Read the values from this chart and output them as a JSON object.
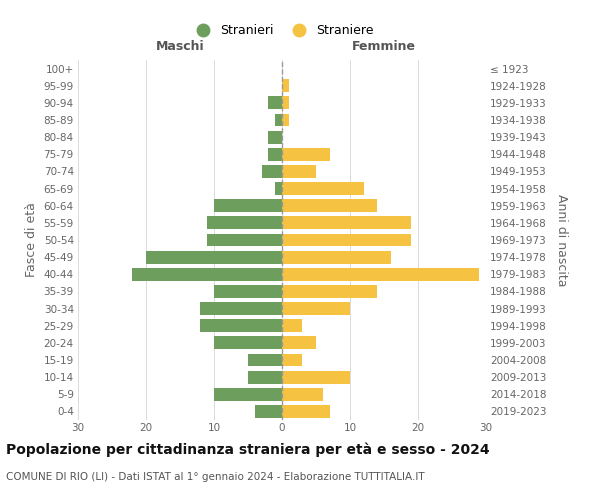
{
  "age_groups": [
    "0-4",
    "5-9",
    "10-14",
    "15-19",
    "20-24",
    "25-29",
    "30-34",
    "35-39",
    "40-44",
    "45-49",
    "50-54",
    "55-59",
    "60-64",
    "65-69",
    "70-74",
    "75-79",
    "80-84",
    "85-89",
    "90-94",
    "95-99",
    "100+"
  ],
  "birth_years": [
    "2019-2023",
    "2014-2018",
    "2009-2013",
    "2004-2008",
    "1999-2003",
    "1994-1998",
    "1989-1993",
    "1984-1988",
    "1979-1983",
    "1974-1978",
    "1969-1973",
    "1964-1968",
    "1959-1963",
    "1954-1958",
    "1949-1953",
    "1944-1948",
    "1939-1943",
    "1934-1938",
    "1929-1933",
    "1924-1928",
    "≤ 1923"
  ],
  "maschi": [
    4,
    10,
    5,
    5,
    10,
    12,
    12,
    10,
    22,
    20,
    11,
    11,
    10,
    1,
    3,
    2,
    2,
    1,
    2,
    0,
    0
  ],
  "femmine": [
    7,
    6,
    10,
    3,
    5,
    3,
    10,
    14,
    29,
    16,
    19,
    19,
    14,
    12,
    5,
    7,
    0,
    1,
    1,
    1,
    0
  ],
  "maschi_color": "#6e9e5e",
  "femmine_color": "#f5c242",
  "dashed_line_color": "#999999",
  "grid_color": "#cccccc",
  "background_color": "#ffffff",
  "title": "Popolazione per cittadinanza straniera per età e sesso - 2024",
  "subtitle": "COMUNE DI RIO (LI) - Dati ISTAT al 1° gennaio 2024 - Elaborazione TUTTITALIA.IT",
  "xlabel_left": "Maschi",
  "xlabel_right": "Femmine",
  "ylabel_left": "Fasce di età",
  "ylabel_right": "Anni di nascita",
  "legend_maschi": "Stranieri",
  "legend_femmine": "Straniere",
  "xlim": 30,
  "title_fontsize": 10,
  "subtitle_fontsize": 7.5,
  "label_fontsize": 9,
  "tick_fontsize": 7.5,
  "header_fontsize": 9
}
